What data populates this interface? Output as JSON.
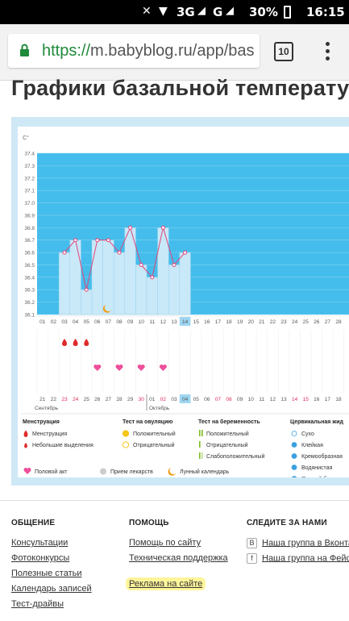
{
  "status_bar": {
    "network": "3G",
    "network2": "G",
    "battery": "30%",
    "time": "16:15"
  },
  "browser": {
    "url_scheme": "https://",
    "url_rest": "m.babyblog.ru/app/bas",
    "tab_count": "10"
  },
  "page": {
    "title": "Графики базальной температур"
  },
  "chart_data": {
    "type": "line",
    "ylabel": "C°",
    "y_ticks": [
      "37.4",
      "37.3",
      "37.2",
      "37.1",
      "37.0",
      "36.9",
      "36.8",
      "36.7",
      "36.6",
      "36.5",
      "36.4",
      "36.3",
      "36.2",
      "36.1"
    ],
    "ylim": [
      36.1,
      37.4
    ],
    "cycle_days": [
      "01",
      "02",
      "03",
      "04",
      "05",
      "06",
      "07",
      "08",
      "09",
      "10",
      "11",
      "12",
      "13",
      "14",
      "15",
      "16",
      "17",
      "18",
      "19",
      "20",
      "21",
      "22",
      "23",
      "24",
      "25",
      "26",
      "27",
      "28"
    ],
    "current_day": "14",
    "x": [
      3,
      4,
      5,
      6,
      7,
      8,
      9,
      10,
      11,
      12,
      13,
      14
    ],
    "values": [
      36.6,
      36.7,
      36.3,
      36.7,
      36.7,
      36.6,
      36.8,
      36.5,
      36.4,
      36.8,
      36.5,
      36.6
    ],
    "menstruation_days": [
      3,
      4,
      5
    ],
    "intercourse_days": [
      6,
      8,
      10,
      12
    ],
    "lunar_day": 7,
    "dates": [
      "21",
      "22",
      "23",
      "24",
      "25",
      "26",
      "27",
      "28",
      "29",
      "30",
      "01",
      "02",
      "03",
      "04",
      "05",
      "06",
      "07",
      "08",
      "09",
      "10",
      "11",
      "12",
      "13",
      "14",
      "15",
      "16",
      "17",
      "18"
    ],
    "red_dates": [
      "23",
      "24",
      "30",
      "02",
      "07",
      "08",
      "14",
      "15"
    ],
    "current_date": "04",
    "month1": "Сентябрь",
    "month2": "Октябрь",
    "grid": true
  },
  "legend": {
    "menstruation_head": "Менструация",
    "menstruation_items": [
      "Менструация",
      "Небольшие выделения"
    ],
    "ovulation_head": "Тест на овуляцию",
    "ovulation_items": [
      "Положительный",
      "Отрицательный"
    ],
    "pregnancy_head": "Тест на беременность",
    "pregnancy_items": [
      "Положительный",
      "Отрицательный",
      "Слабоположительный"
    ],
    "mucus_head": "Цервикальная жид",
    "mucus_items": [
      "Сухо",
      "Клейкая",
      "Кремообразная",
      "Водянистая",
      "Яичный белок"
    ],
    "bottom_items": [
      "Половой акт",
      "Прием лекарств",
      "Лунный календарь"
    ],
    "colors": {
      "sky": "#45bdec",
      "bar": "#c9e8f8",
      "line": "#e0457a",
      "red": "#e02a2a",
      "pink": "#ee4f9a",
      "yellow": "#f5c518",
      "green": "#7cbc1f",
      "blue": "#3aa0e0"
    }
  },
  "footer": {
    "col1_head": "ОБЩЕНИЕ",
    "col1_links": [
      "Консультации",
      "Фотоконкурсы",
      "Полезные статьи",
      "Календарь записей",
      "Тест-драйвы"
    ],
    "col2_head": "ПОМОЩЬ",
    "col2_links": [
      "Помощь по сайту",
      "Техническая поддержка"
    ],
    "col2_highlight": "Реклама на сайте",
    "col3_head": "СЛЕДИТЕ ЗА НАМИ",
    "col3_links": [
      "Наша группа в Вконтакт",
      "Наша группа на Фейсбу"
    ],
    "social_icons": [
      "В",
      "f"
    ]
  }
}
